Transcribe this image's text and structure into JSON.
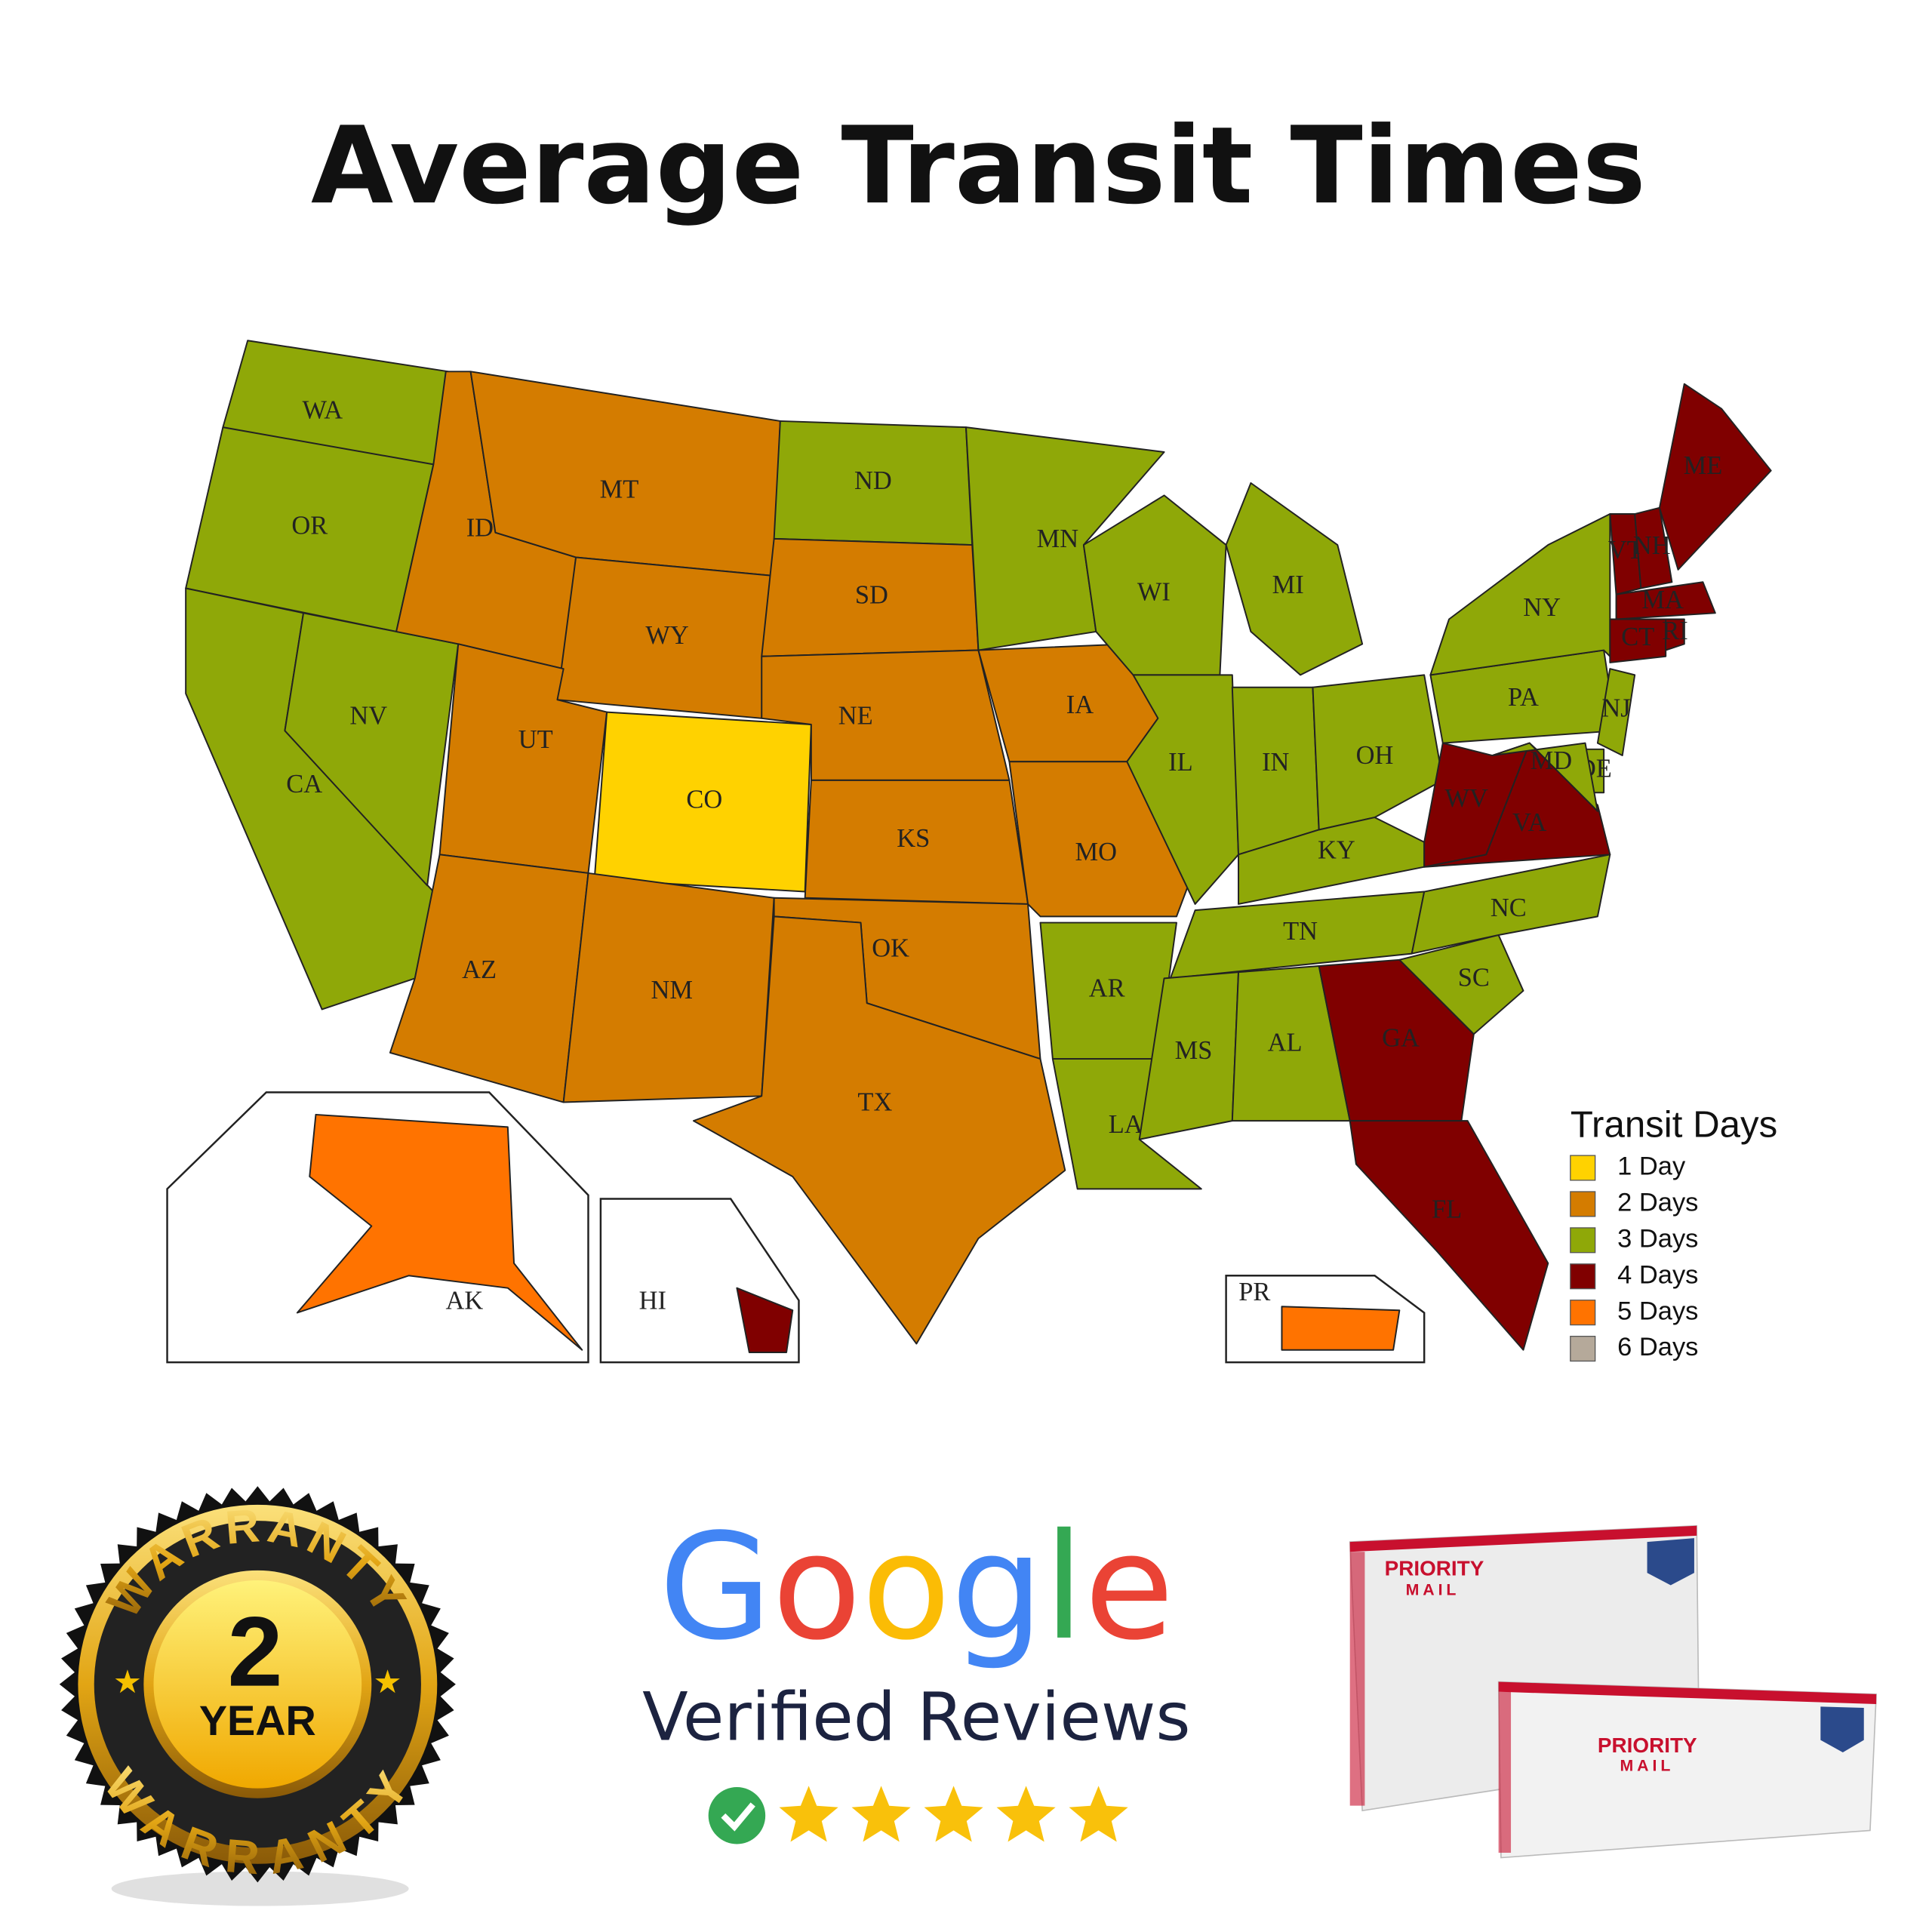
{
  "title": "Average Transit Times",
  "map": {
    "states": [
      {
        "label": "WA",
        "days": 3
      },
      {
        "label": "OR",
        "days": 3
      },
      {
        "label": "CA",
        "days": 3
      },
      {
        "label": "NV",
        "days": 3
      },
      {
        "label": "ID",
        "days": 2
      },
      {
        "label": "MT",
        "days": 2
      },
      {
        "label": "WY",
        "days": 2
      },
      {
        "label": "UT",
        "days": 2
      },
      {
        "label": "CO",
        "days": 1
      },
      {
        "label": "AZ",
        "days": 2
      },
      {
        "label": "NM",
        "days": 2
      },
      {
        "label": "ND",
        "days": 3
      },
      {
        "label": "SD",
        "days": 2
      },
      {
        "label": "NE",
        "days": 2
      },
      {
        "label": "KS",
        "days": 2
      },
      {
        "label": "OK",
        "days": 2
      },
      {
        "label": "TX",
        "days": 2
      },
      {
        "label": "MN",
        "days": 3
      },
      {
        "label": "IA",
        "days": 2
      },
      {
        "label": "MO",
        "days": 2
      },
      {
        "label": "AR",
        "days": 3
      },
      {
        "label": "LA",
        "days": 3
      },
      {
        "label": "WI",
        "days": 3
      },
      {
        "label": "IL",
        "days": 3
      },
      {
        "label": "MI",
        "days": 3
      },
      {
        "label": "IN",
        "days": 3
      },
      {
        "label": "OH",
        "days": 3
      },
      {
        "label": "KY",
        "days": 3
      },
      {
        "label": "TN",
        "days": 3
      },
      {
        "label": "MS",
        "days": 3
      },
      {
        "label": "AL",
        "days": 3
      },
      {
        "label": "GA",
        "days": 4
      },
      {
        "label": "FL",
        "days": 4
      },
      {
        "label": "SC",
        "days": 3
      },
      {
        "label": "NC",
        "days": 3
      },
      {
        "label": "VA",
        "days": 4
      },
      {
        "label": "WV",
        "days": 4
      },
      {
        "label": "PA",
        "days": 3
      },
      {
        "label": "NY",
        "days": 3
      },
      {
        "label": "VT",
        "days": 4
      },
      {
        "label": "NH",
        "days": 4
      },
      {
        "label": "ME",
        "days": 4
      },
      {
        "label": "MA",
        "days": 4
      },
      {
        "label": "CT",
        "days": 4
      },
      {
        "label": "RI",
        "days": 4
      },
      {
        "label": "NJ",
        "days": 3
      },
      {
        "label": "DE",
        "days": 3
      },
      {
        "label": "MD",
        "days": 3
      },
      {
        "label": "AK",
        "days": 5
      },
      {
        "label": "HI",
        "days": 4
      },
      {
        "label": "PR",
        "days": 5
      }
    ],
    "legend": {
      "title": "Transit Days",
      "items": [
        {
          "label": "1 Day",
          "days": 1,
          "color": "#ffd200"
        },
        {
          "label": "2 Days",
          "days": 2,
          "color": "#d47c00"
        },
        {
          "label": "3 Days",
          "days": 3,
          "color": "#8fa808"
        },
        {
          "label": "4 Days",
          "days": 4,
          "color": "#800000"
        },
        {
          "label": "5 Days",
          "days": 5,
          "color": "#ff7300"
        },
        {
          "label": "6 Days",
          "days": 6,
          "color": "#b5a99a"
        }
      ]
    }
  },
  "badges": {
    "warranty": {
      "top": "WARRANTY",
      "number": "2",
      "unit": "YEAR",
      "bottom": "WARRANTY"
    },
    "reviews": {
      "brand": "Google",
      "text": "Verified Reviews",
      "stars": 5
    },
    "shipping": {
      "brand": "PRIORITY",
      "sub": "MAIL"
    }
  }
}
